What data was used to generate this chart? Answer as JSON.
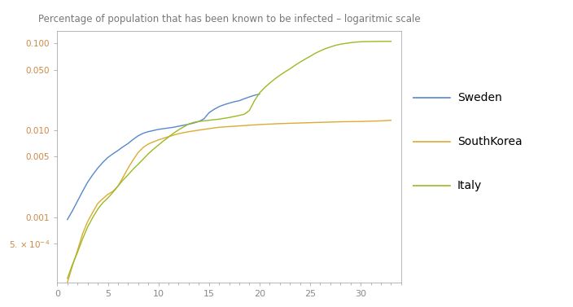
{
  "title": "Percentage of population that has been known to be infected – logaritmic scale",
  "title_color": "#777777",
  "background_color": "#ffffff",
  "xlim": [
    0,
    34
  ],
  "xticks": [
    0,
    5,
    10,
    15,
    20,
    25,
    30
  ],
  "legend_labels": [
    "Sweden",
    "SouthKorea",
    "Italy"
  ],
  "legend_colors": [
    "#5588cc",
    "#ddaa33",
    "#99bb22"
  ],
  "sweden_x": [
    1,
    1.5,
    2,
    2.5,
    3,
    3.5,
    4,
    4.5,
    5,
    5.5,
    6,
    6.5,
    7,
    7.5,
    8,
    8.5,
    9,
    9.5,
    10,
    10.5,
    11,
    11.5,
    12,
    12.5,
    13,
    13.5,
    14,
    14.5,
    15,
    15.5,
    16,
    16.5,
    17,
    17.5,
    18,
    18.5,
    19,
    19.5,
    20
  ],
  "sweden_y": [
    0.00095,
    0.0012,
    0.00155,
    0.002,
    0.00255,
    0.0031,
    0.0037,
    0.0043,
    0.0049,
    0.0054,
    0.0059,
    0.0065,
    0.0071,
    0.0079,
    0.0087,
    0.0093,
    0.0097,
    0.01,
    0.0103,
    0.0105,
    0.0107,
    0.0109,
    0.0112,
    0.0115,
    0.0118,
    0.0122,
    0.0127,
    0.0136,
    0.016,
    0.0175,
    0.0188,
    0.0198,
    0.0206,
    0.0214,
    0.022,
    0.0232,
    0.0243,
    0.0254,
    0.0262
  ],
  "southkorea_x": [
    1,
    1.5,
    2,
    2.5,
    3,
    3.5,
    4,
    4.5,
    5,
    5.5,
    6,
    6.5,
    7,
    7.5,
    8,
    8.5,
    9,
    9.5,
    10,
    11,
    12,
    13,
    14,
    15,
    16,
    17,
    18,
    19,
    20,
    21,
    22,
    23,
    24,
    25,
    26,
    27,
    28,
    29,
    30,
    31,
    32,
    33
  ],
  "southkorea_y": [
    0.00018,
    0.00028,
    0.00042,
    0.00065,
    0.0009,
    0.00115,
    0.00145,
    0.00165,
    0.00185,
    0.002,
    0.0023,
    0.0029,
    0.0037,
    0.0046,
    0.0056,
    0.0064,
    0.007,
    0.0074,
    0.0078,
    0.0085,
    0.0092,
    0.0097,
    0.0101,
    0.0105,
    0.0109,
    0.0111,
    0.0113,
    0.0115,
    0.0117,
    0.01185,
    0.012,
    0.0121,
    0.0122,
    0.0123,
    0.0124,
    0.0125,
    0.0126,
    0.01265,
    0.0127,
    0.0128,
    0.0129,
    0.0131
  ],
  "italy_x": [
    1,
    1.5,
    2,
    2.5,
    3,
    3.5,
    4,
    4.5,
    5,
    5.5,
    6,
    6.5,
    7,
    7.5,
    8,
    8.5,
    9,
    9.5,
    10,
    10.5,
    11,
    11.5,
    12,
    12.5,
    13,
    13.5,
    14,
    14.5,
    15,
    15.5,
    16,
    16.5,
    17,
    17.5,
    18,
    18.5,
    19,
    19.5,
    20,
    20.5,
    21,
    21.5,
    22,
    22.5,
    23,
    23.5,
    24,
    24.5,
    25,
    25.5,
    26,
    26.5,
    27,
    27.5,
    28,
    28.5,
    29,
    29.5,
    30,
    30.5,
    31,
    31.5,
    32,
    32.5,
    33
  ],
  "italy_y": [
    0.0002,
    0.00029,
    0.0004,
    0.00057,
    0.00078,
    0.001,
    0.00125,
    0.00148,
    0.00168,
    0.00195,
    0.0023,
    0.0027,
    0.0031,
    0.0036,
    0.0041,
    0.0047,
    0.0054,
    0.0061,
    0.0068,
    0.0076,
    0.0084,
    0.0093,
    0.0102,
    0.011,
    0.0119,
    0.0124,
    0.0127,
    0.0129,
    0.0131,
    0.0133,
    0.0135,
    0.0138,
    0.0141,
    0.0145,
    0.0149,
    0.0154,
    0.017,
    0.022,
    0.027,
    0.031,
    0.035,
    0.039,
    0.043,
    0.047,
    0.051,
    0.056,
    0.061,
    0.066,
    0.071,
    0.077,
    0.082,
    0.087,
    0.091,
    0.095,
    0.098,
    0.1,
    0.102,
    0.1035,
    0.1045,
    0.105,
    0.1052,
    0.1054,
    0.1055,
    0.1056,
    0.1057
  ]
}
